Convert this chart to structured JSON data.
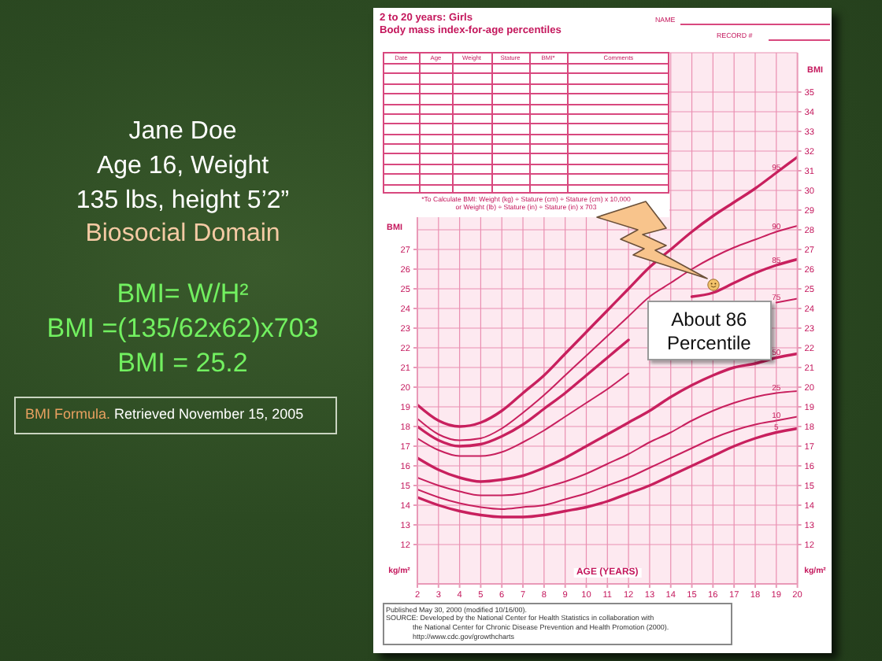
{
  "chart_data": [
    {
      "type": "other",
      "annotations": [
        "Jane Doe",
        "Age 16, Weight",
        "135 lbs, height 5’2”",
        "Biosocial Domain",
        "BMI= W/H²",
        "BMI =(135/62x62)x703",
        "BMI = 25.2",
        "BMI Formula.",
        "Retrieved November 15, 2005"
      ]
    },
    {
      "type": "line",
      "title": "2 to 20 years: Girls",
      "subtitle": "Body mass index-for-age percentiles",
      "xlabel": "AGE (YEARS)",
      "ylabel": "BMI",
      "y2label": "BMI",
      "x": [
        2,
        3,
        4,
        5,
        6,
        7,
        8,
        9,
        10,
        11,
        12,
        13,
        14,
        15,
        16,
        17,
        18,
        19,
        20
      ],
      "xlim": [
        2,
        20
      ],
      "xticks": [
        2,
        3,
        4,
        5,
        6,
        7,
        8,
        9,
        10,
        11,
        12,
        13,
        14,
        15,
        16,
        17,
        18,
        19,
        20
      ],
      "ylim": [
        10,
        37
      ],
      "yticks": [
        12,
        13,
        14,
        15,
        16,
        17,
        18,
        19,
        20,
        21,
        22,
        23,
        24,
        25,
        26,
        27
      ],
      "y2lim": [
        10,
        37
      ],
      "y2ticks": [
        12,
        13,
        14,
        15,
        16,
        17,
        18,
        19,
        20,
        21,
        22,
        23,
        24,
        25,
        26,
        27,
        28,
        29,
        30,
        31,
        32,
        33,
        34,
        35
      ],
      "grid": true,
      "marker": "none",
      "series": [
        {
          "name": "95",
          "color": "#c8205e",
          "values": [
            19.1,
            18.3,
            18.0,
            18.2,
            18.8,
            19.7,
            20.6,
            21.7,
            22.8,
            23.9,
            25.0,
            26.1,
            27.0,
            27.9,
            28.7,
            29.4,
            30.1,
            30.9,
            31.7
          ]
        },
        {
          "name": "90",
          "color": "#c8205e",
          "values": [
            18.4,
            17.6,
            17.3,
            17.4,
            17.9,
            18.7,
            19.6,
            20.6,
            21.6,
            22.6,
            23.6,
            24.6,
            25.3,
            26.0,
            26.6,
            27.1,
            27.5,
            27.9,
            28.2
          ]
        },
        {
          "name": "85",
          "color": "#c8205e",
          "values": [
            18.0,
            17.3,
            17.0,
            17.1,
            17.5,
            18.1,
            18.9,
            19.7,
            20.6,
            21.5,
            22.4,
            null,
            null,
            24.6,
            24.8,
            25.3,
            25.8,
            26.2,
            26.5
          ]
        },
        {
          "name": "75",
          "color": "#c8205e",
          "values": [
            17.4,
            16.8,
            16.5,
            16.5,
            16.7,
            17.2,
            17.8,
            18.5,
            19.2,
            19.9,
            20.7,
            null,
            null,
            null,
            null,
            null,
            null,
            24.3,
            24.5
          ]
        },
        {
          "name": "50",
          "color": "#c8205e",
          "values": [
            16.4,
            15.8,
            15.4,
            15.2,
            15.3,
            15.5,
            15.9,
            16.4,
            17.0,
            17.6,
            18.2,
            18.8,
            19.5,
            20.1,
            20.6,
            21.0,
            21.2,
            21.5,
            21.7
          ]
        },
        {
          "name": "25",
          "color": "#c8205e",
          "values": [
            15.4,
            15.0,
            14.7,
            14.5,
            14.5,
            14.6,
            14.9,
            15.2,
            15.6,
            16.1,
            16.6,
            17.2,
            17.7,
            18.3,
            18.8,
            19.2,
            19.5,
            19.7,
            19.8
          ]
        },
        {
          "name": "10",
          "color": "#c8205e",
          "values": [
            14.8,
            14.4,
            14.1,
            13.9,
            13.8,
            13.9,
            14.0,
            14.3,
            14.6,
            15.0,
            15.4,
            15.9,
            16.4,
            16.9,
            17.4,
            17.8,
            18.1,
            18.3,
            18.5
          ]
        },
        {
          "name": "5",
          "color": "#c8205e",
          "values": [
            14.4,
            14.0,
            13.7,
            13.5,
            13.4,
            13.4,
            13.5,
            13.7,
            13.9,
            14.2,
            14.6,
            15.0,
            15.5,
            16.0,
            16.5,
            17.0,
            17.4,
            17.7,
            17.9
          ]
        }
      ],
      "annotations": [
        "NAME",
        "RECORD #",
        "Date",
        "Age",
        "Weight",
        "Stature",
        "BMI*",
        "Comments",
        "*To Calculate BMI: Weight (kg) ÷ Stature (cm) ÷ Stature (cm) x 10,000",
        "or Weight (lb) ÷ Stature (in) ÷ Stature (in) x 703",
        "kg/m²",
        "kg/m²",
        "Published May 30, 2000 (modified 10/16/00).",
        "SOURCE: Developed by the National Center for Health Statistics in collaboration with",
        "the National Center for Chronic Disease Prevention and Health Promotion (2000).",
        "http://www.cdc.gov/growthcharts",
        {
          "text": "About 86 Percentile",
          "x": 16,
          "y": 25.2
        }
      ]
    }
  ]
}
